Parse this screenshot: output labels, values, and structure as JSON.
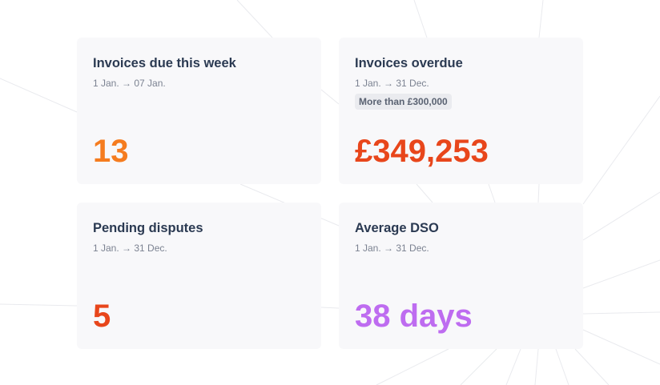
{
  "cards": [
    {
      "title": "Invoices due this week",
      "range": "1 Jan. → 07 Jan.",
      "value": "13",
      "value_color": "#f57c1f"
    },
    {
      "title": "Invoices overdue",
      "range": "1 Jan. → 31 Dec.",
      "badge": "More than £300,000",
      "value": "£349,253",
      "value_color": "#e8461b"
    },
    {
      "title": "Pending disputes",
      "range": "1 Jan. → 31 Dec.",
      "value": "5",
      "value_color": "#e8461b"
    },
    {
      "title": "Average DSO",
      "range": "1 Jan. → 31 Dec.",
      "value": "38 days",
      "value_color": "#be6cf0"
    }
  ]
}
